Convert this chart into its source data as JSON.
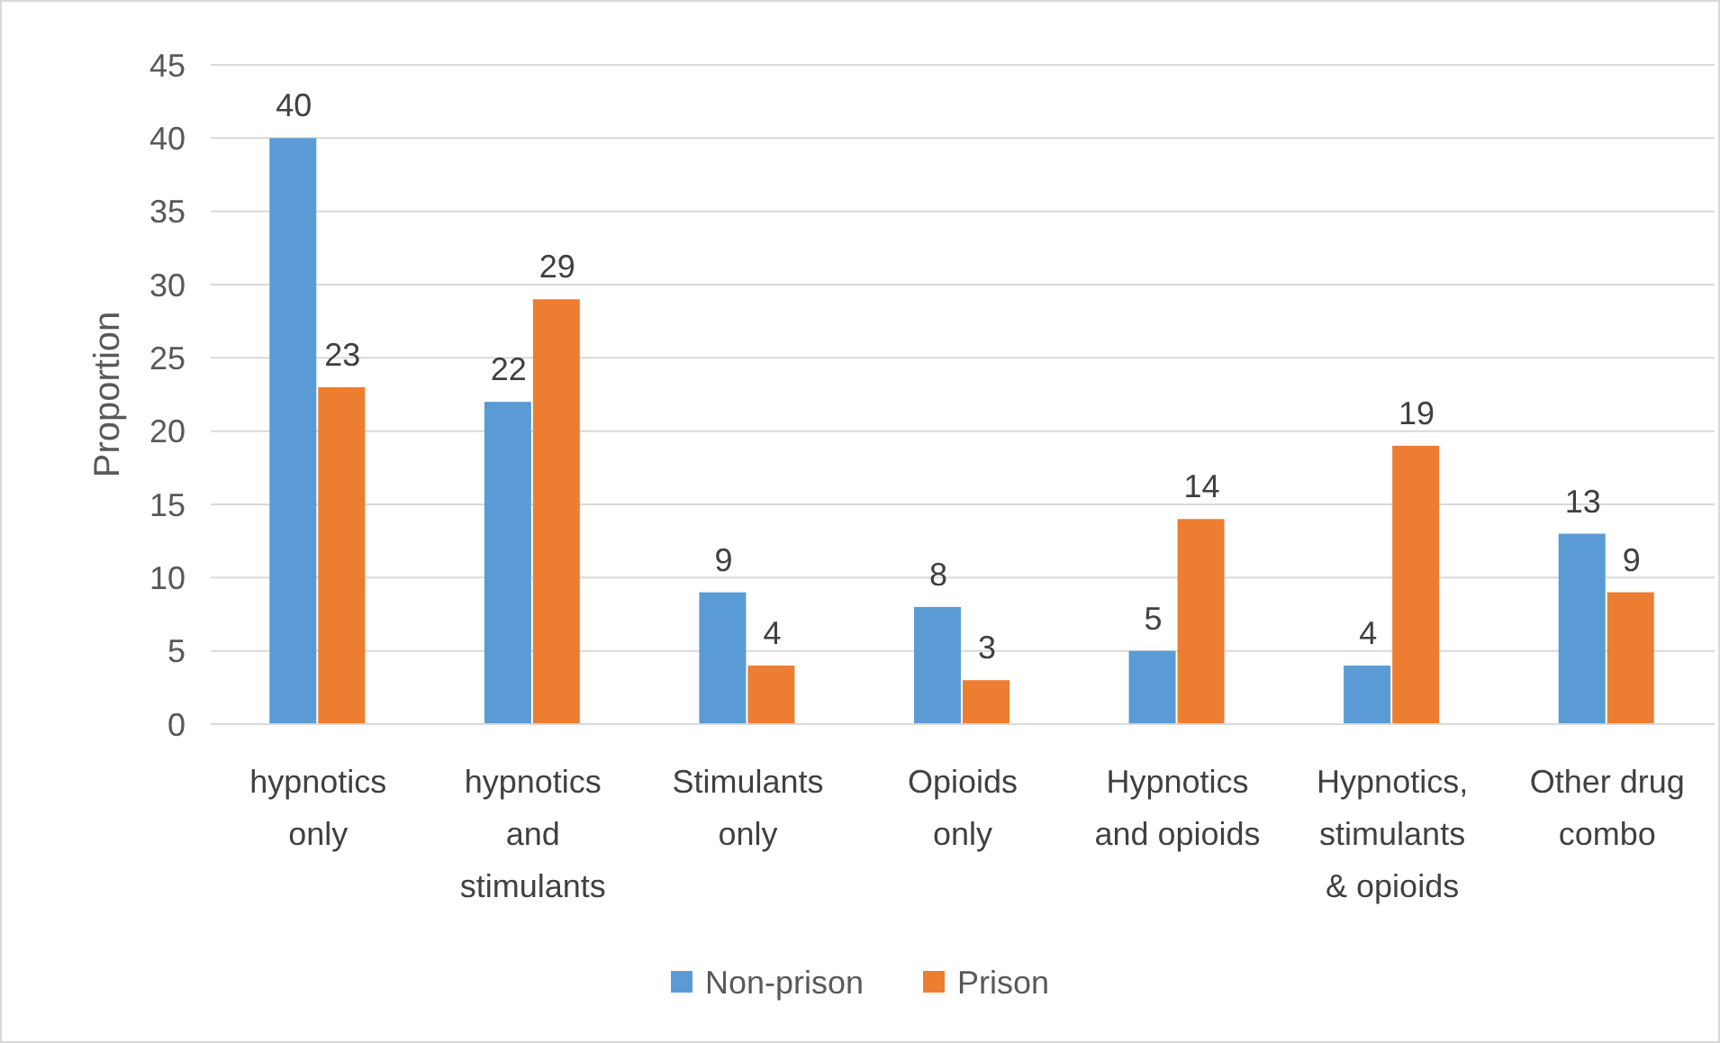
{
  "chart_data": {
    "type": "bar",
    "ylabel": "Proportion",
    "categories": [
      "hypnotics only",
      "hypnotics and stimulants",
      "Stimulants only",
      "Opioids only",
      "Hypnotics and opioids",
      "Hypnotics, stimulants & opioids",
      "Other drug combo"
    ],
    "series": [
      {
        "name": "Non-prison",
        "color": "#5b9bd5",
        "values": [
          40,
          22,
          9,
          8,
          5,
          4,
          13
        ]
      },
      {
        "name": "Prison",
        "color": "#ed7d31",
        "values": [
          23,
          29,
          4,
          3,
          14,
          19,
          9
        ]
      }
    ],
    "ylim": [
      0,
      45
    ],
    "yticks": [
      0,
      5,
      10,
      15,
      20,
      25,
      30,
      35,
      40,
      45
    ],
    "grid": "y",
    "legend": "bottom",
    "data_labels": true
  }
}
